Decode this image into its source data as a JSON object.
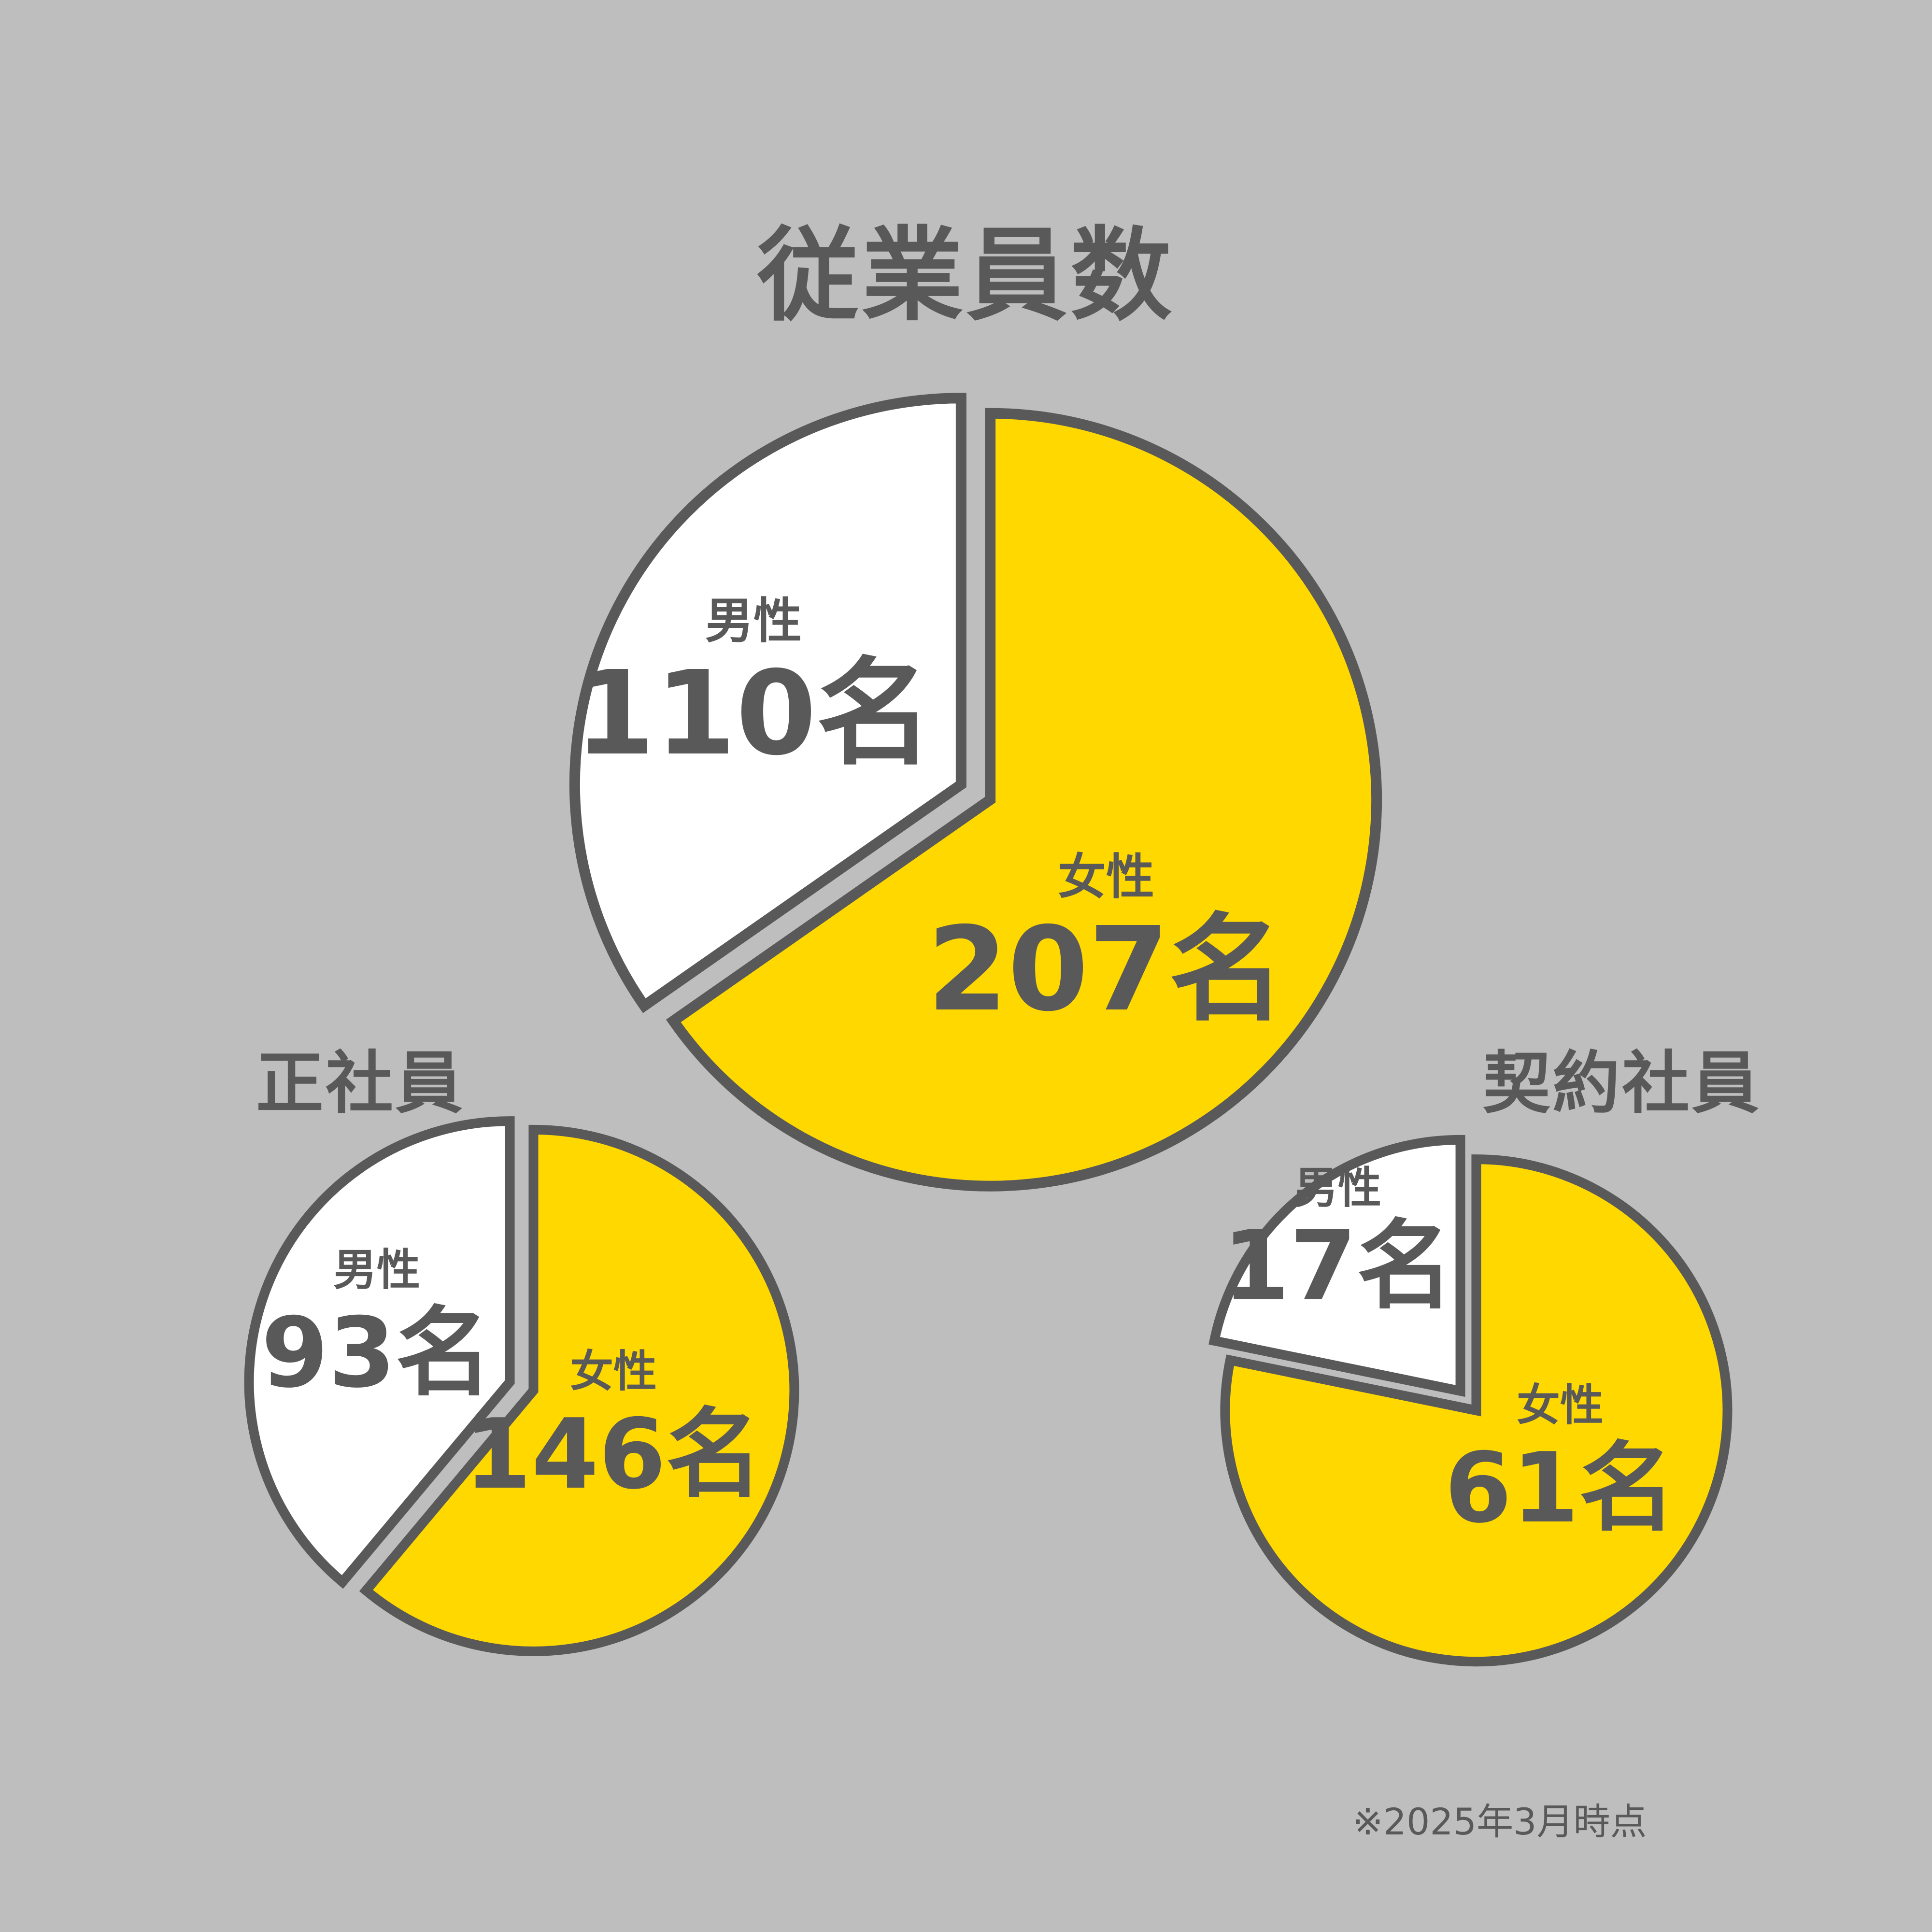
{
  "title": "従業員数",
  "footnote": "※2025年3月時点",
  "colors": {
    "background": "#bebebe",
    "female": "#ffd800",
    "male": "#ffffff",
    "stroke": "#595959"
  },
  "chart_data": [
    {
      "type": "pie",
      "title": "",
      "unit": "名",
      "slices": [
        {
          "label": "男性",
          "value": 110,
          "color": "#ffffff"
        },
        {
          "label": "女性",
          "value": 207,
          "color": "#ffd800"
        }
      ]
    },
    {
      "type": "pie",
      "title": "正社員",
      "unit": "名",
      "slices": [
        {
          "label": "男性",
          "value": 93,
          "color": "#ffffff"
        },
        {
          "label": "女性",
          "value": 146,
          "color": "#ffd800"
        }
      ]
    },
    {
      "type": "pie",
      "title": "契約社員",
      "unit": "名",
      "slices": [
        {
          "label": "男性",
          "value": 17,
          "color": "#ffffff"
        },
        {
          "label": "女性",
          "value": 61,
          "color": "#ffd800"
        }
      ]
    }
  ]
}
